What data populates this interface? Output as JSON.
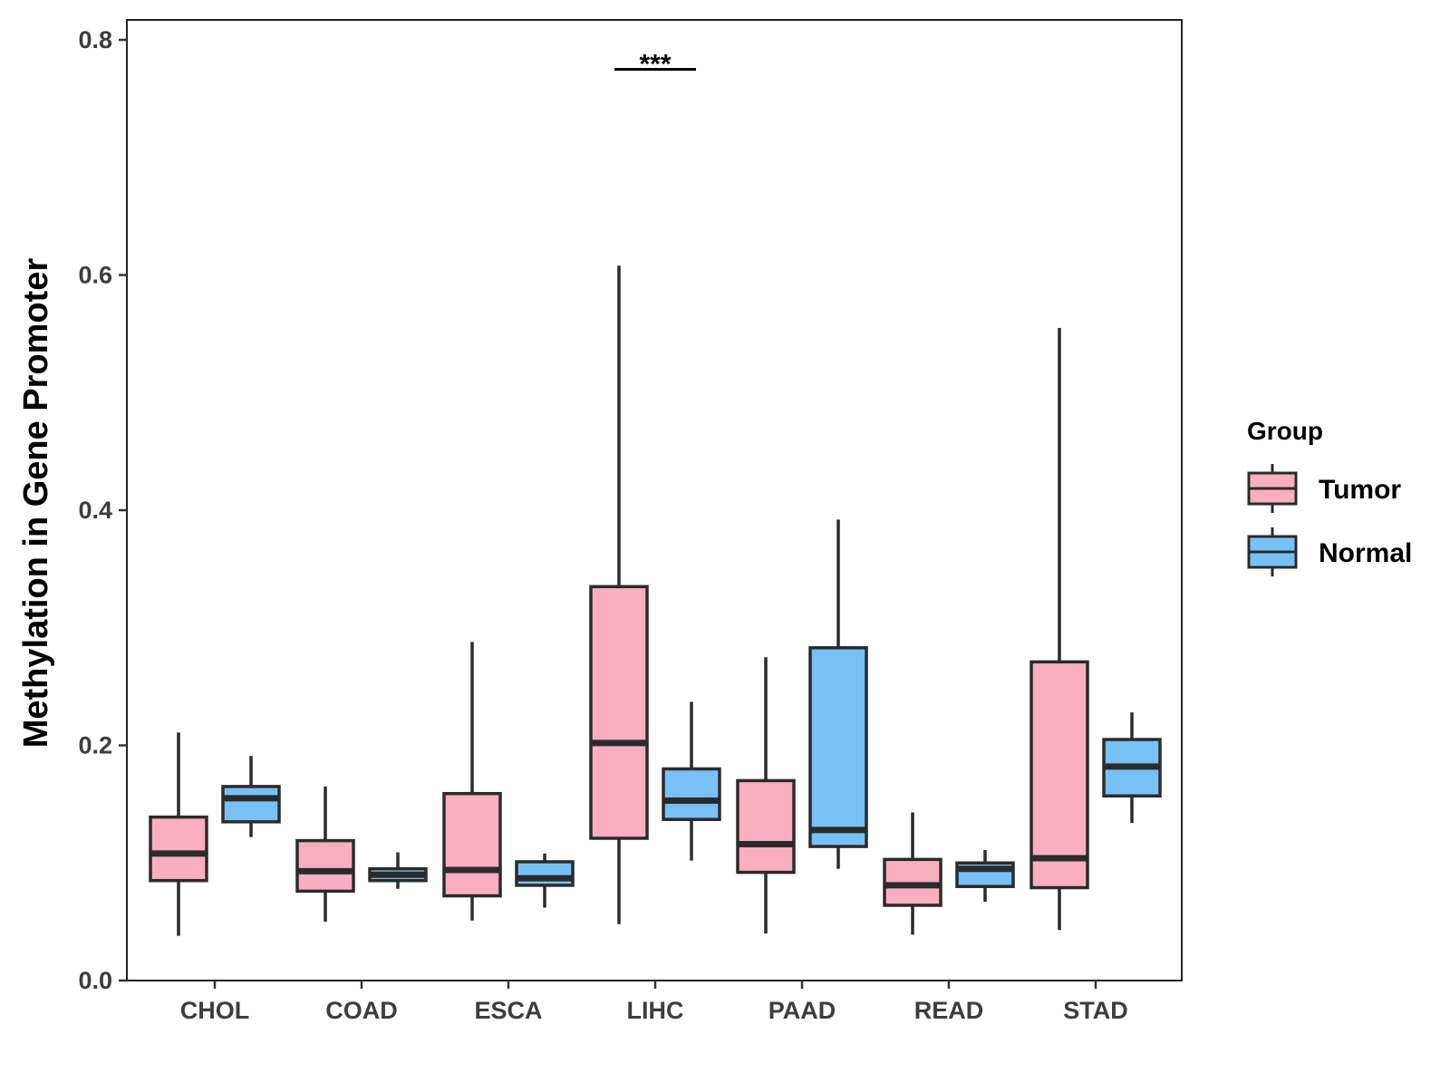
{
  "chart_data": {
    "type": "boxplot",
    "title": "",
    "xlabel": "",
    "ylabel": "Methylation in Gene Promoter",
    "ylim": [
      0,
      0.8
    ],
    "yticks": [
      0.0,
      0.2,
      0.4,
      0.6,
      0.8
    ],
    "ytick_labels": [
      "0.0",
      "0.2",
      "0.4",
      "0.6",
      "0.8"
    ],
    "grid": false,
    "categories": [
      "CHOL",
      "COAD",
      "ESCA",
      "LIHC",
      "PAAD",
      "READ",
      "STAD"
    ],
    "series": [
      {
        "name": "Tumor",
        "color": "#F9AFC0",
        "boxes": [
          {
            "min": 0.038,
            "q1": 0.085,
            "median": 0.108,
            "q3": 0.139,
            "max": 0.211
          },
          {
            "min": 0.05,
            "q1": 0.076,
            "median": 0.093,
            "q3": 0.119,
            "max": 0.165
          },
          {
            "min": 0.051,
            "q1": 0.072,
            "median": 0.094,
            "q3": 0.159,
            "max": 0.288
          },
          {
            "min": 0.048,
            "q1": 0.121,
            "median": 0.202,
            "q3": 0.335,
            "max": 0.608
          },
          {
            "min": 0.04,
            "q1": 0.092,
            "median": 0.116,
            "q3": 0.17,
            "max": 0.275
          },
          {
            "min": 0.039,
            "q1": 0.064,
            "median": 0.081,
            "q3": 0.103,
            "max": 0.143
          },
          {
            "min": 0.043,
            "q1": 0.079,
            "median": 0.104,
            "q3": 0.271,
            "max": 0.555
          }
        ]
      },
      {
        "name": "Normal",
        "color": "#78C1F7",
        "boxes": [
          {
            "min": 0.122,
            "q1": 0.135,
            "median": 0.155,
            "q3": 0.165,
            "max": 0.191
          },
          {
            "min": 0.078,
            "q1": 0.085,
            "median": 0.09,
            "q3": 0.095,
            "max": 0.109
          },
          {
            "min": 0.062,
            "q1": 0.081,
            "median": 0.087,
            "q3": 0.101,
            "max": 0.108
          },
          {
            "min": 0.102,
            "q1": 0.137,
            "median": 0.153,
            "q3": 0.18,
            "max": 0.237
          },
          {
            "min": 0.095,
            "q1": 0.114,
            "median": 0.128,
            "q3": 0.283,
            "max": 0.392
          },
          {
            "min": 0.067,
            "q1": 0.08,
            "median": 0.095,
            "q3": 0.1,
            "max": 0.111
          },
          {
            "min": 0.134,
            "q1": 0.157,
            "median": 0.182,
            "q3": 0.205,
            "max": 0.228
          }
        ]
      }
    ],
    "annotations": [
      {
        "text": "***",
        "category": "LIHC",
        "y": 0.775
      }
    ],
    "legend": {
      "title": "Group",
      "position": "right",
      "items": [
        "Tumor",
        "Normal"
      ]
    }
  }
}
